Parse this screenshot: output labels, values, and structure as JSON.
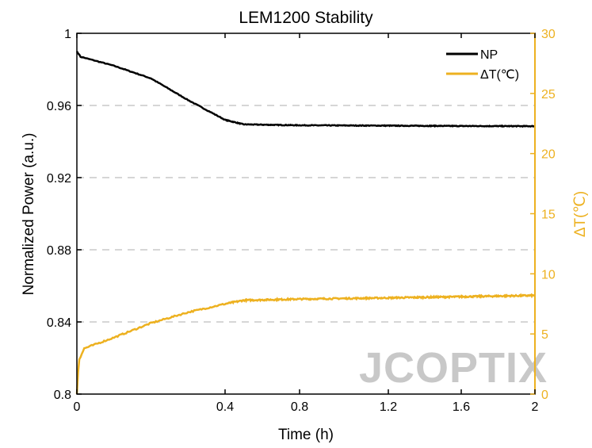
{
  "chart_data": {
    "type": "line",
    "title": "LEM1200 Stability",
    "xlabel": "Time (h)",
    "ylabel": "Normalized Power (a.u.)",
    "y2label": "ΔT(℃)",
    "xlim": [
      0,
      2
    ],
    "ylim": [
      0.8,
      1
    ],
    "y2lim": [
      0,
      30
    ],
    "xticks": [
      "0",
      "0.4",
      "0.8",
      "1.2",
      "1.6",
      "2"
    ],
    "yticks": [
      "0.8",
      "0.84",
      "0.88",
      "0.92",
      "0.96",
      "1"
    ],
    "y2ticks": [
      "0",
      "5",
      "10",
      "15",
      "20",
      "25",
      "30"
    ],
    "grid": "horizontal dashed",
    "legend": "top-right",
    "series": [
      {
        "name": "NP",
        "axis": "left",
        "color": "#000000",
        "x": [
          0,
          0.01,
          0.1,
          0.2,
          0.3,
          0.4,
          0.5,
          0.8,
          1.2,
          1.6,
          2.0
        ],
        "y": [
          0.99,
          0.987,
          0.982,
          0.975,
          0.963,
          0.952,
          0.9495,
          0.949,
          0.9488,
          0.9486,
          0.9485
        ]
      },
      {
        "name": "ΔT(℃)",
        "axis": "right",
        "color": "#EDB120",
        "x": [
          0,
          0.005,
          0.02,
          0.1,
          0.2,
          0.3,
          0.4,
          0.5,
          0.8,
          1.2,
          1.6,
          2.0
        ],
        "y": [
          0,
          2.8,
          3.8,
          4.7,
          5.9,
          6.8,
          7.5,
          7.8,
          7.9,
          8.0,
          8.1,
          8.2
        ]
      }
    ]
  },
  "watermark": "JCOPTIX"
}
